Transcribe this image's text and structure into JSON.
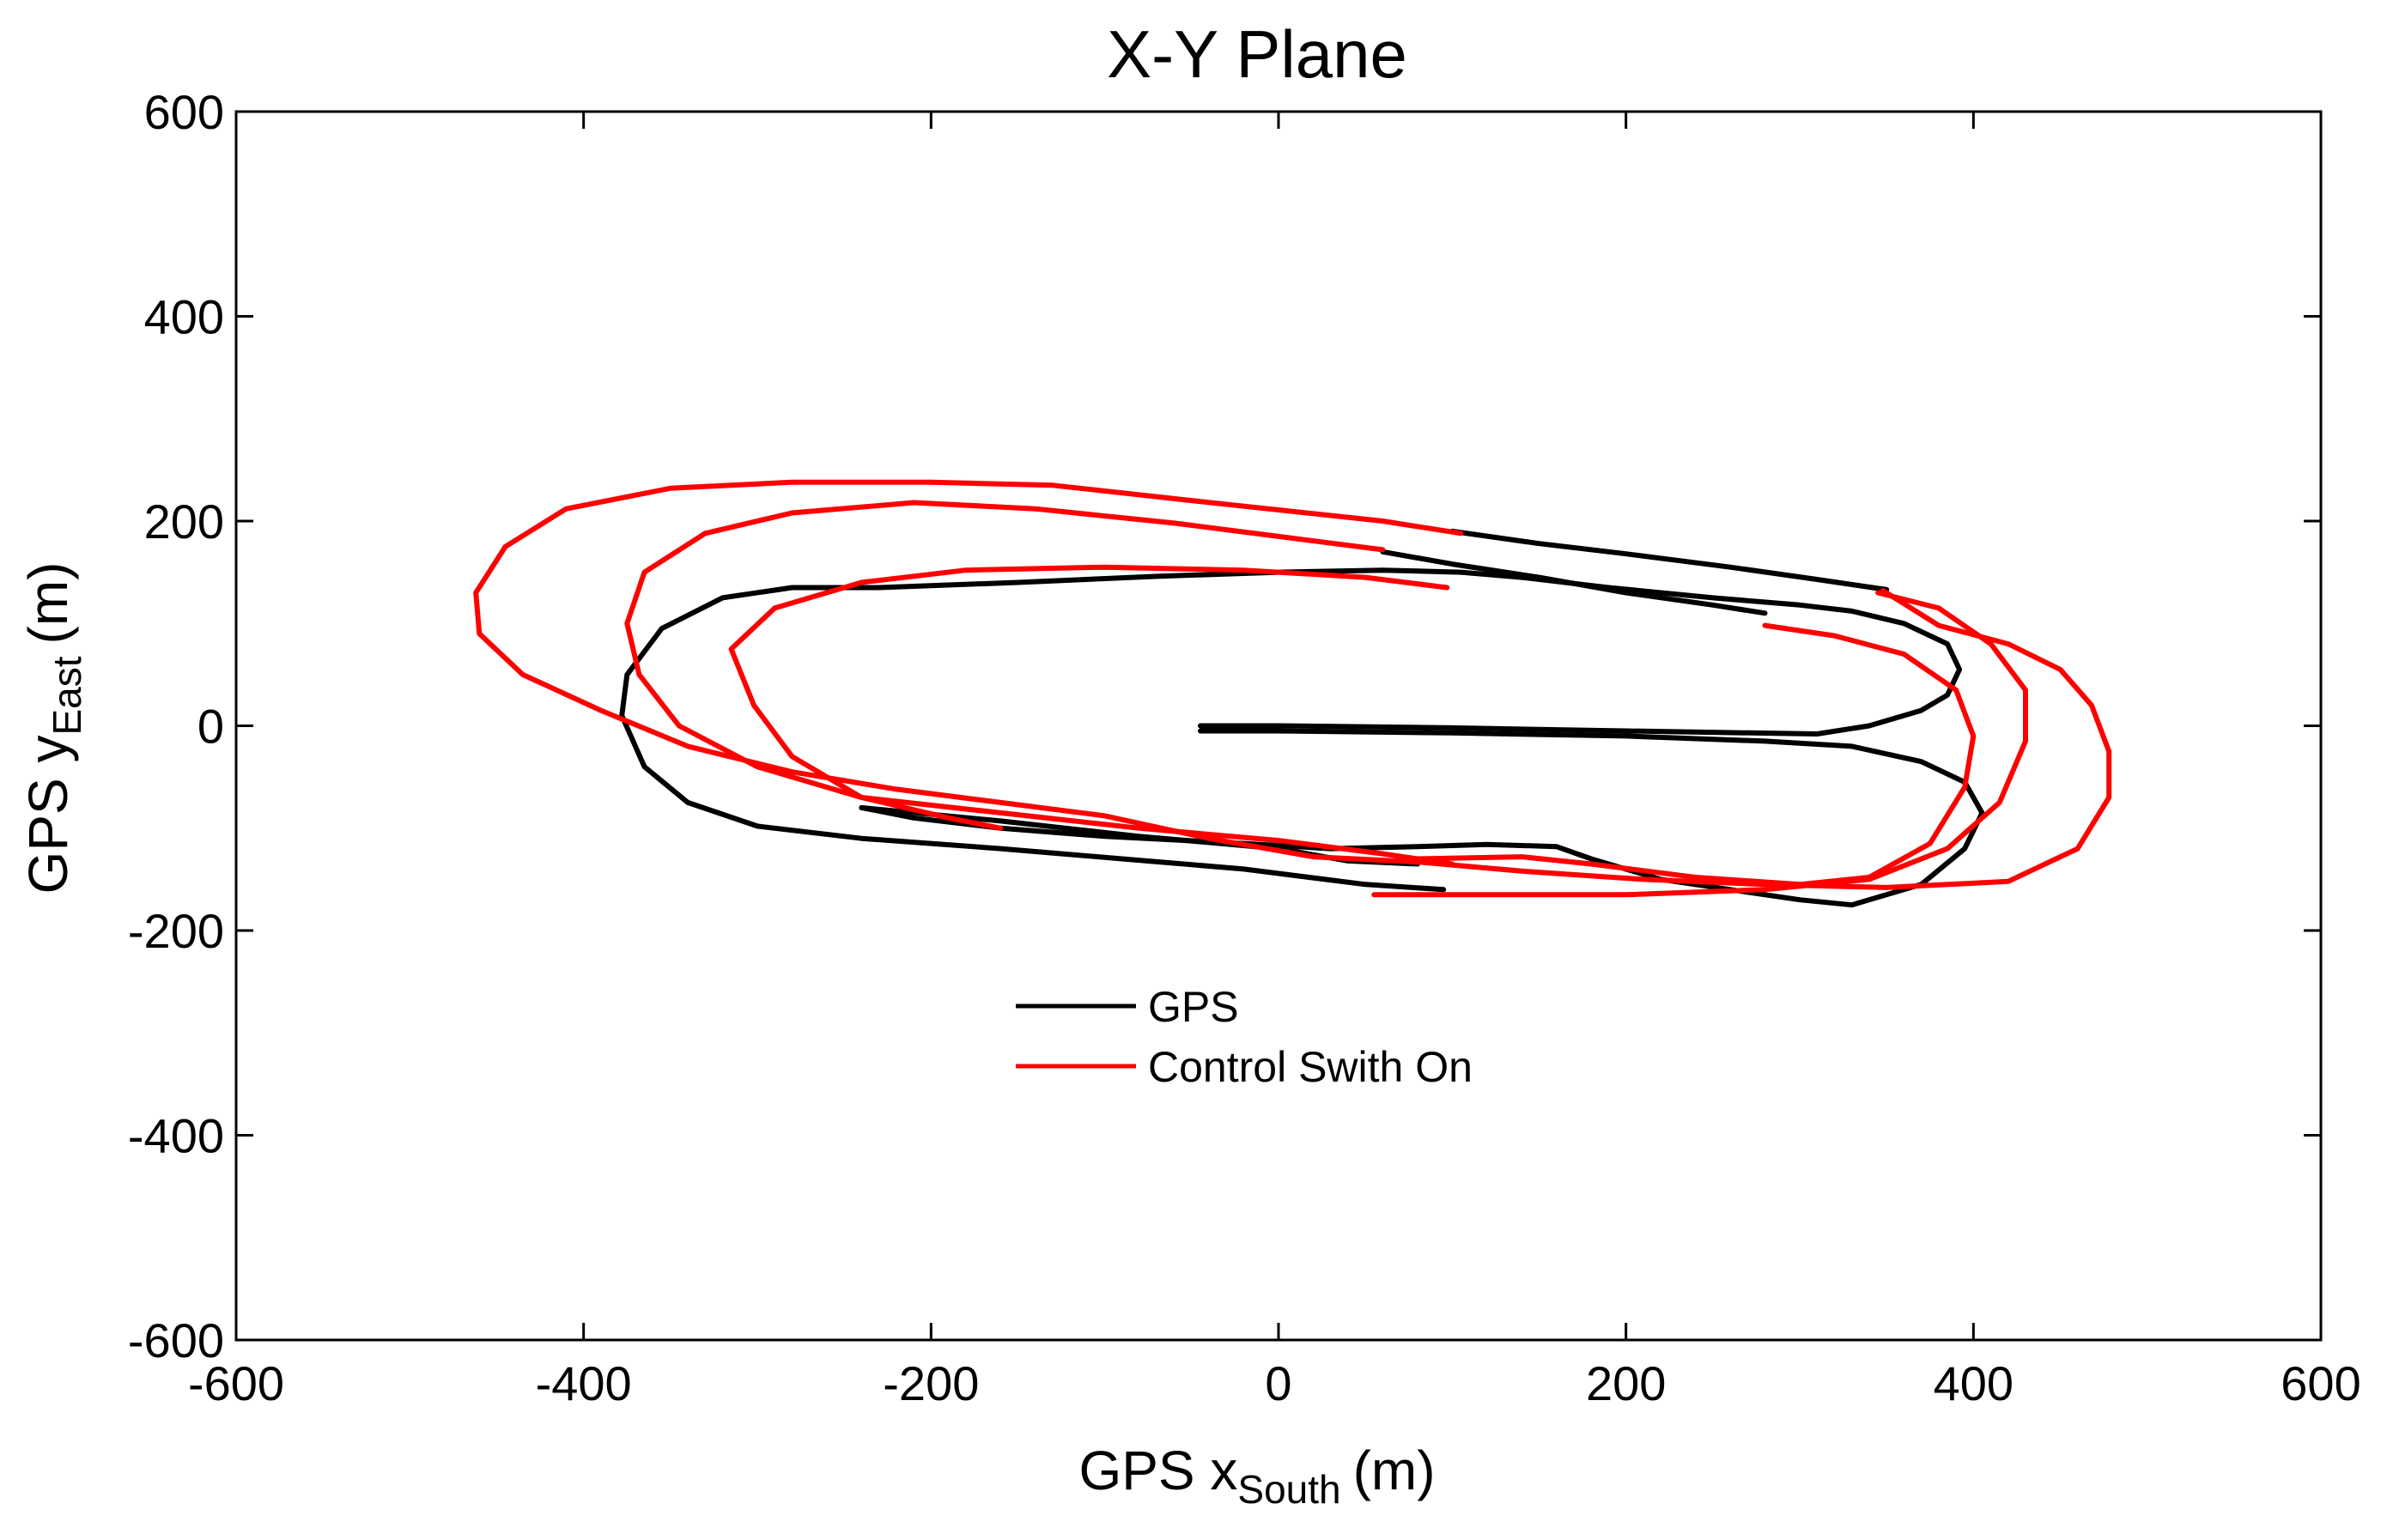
{
  "chart_data": {
    "type": "line",
    "title": "X-Y Plane",
    "xlabel": {
      "main": "GPS x",
      "sub": "South",
      "unit": "(m)"
    },
    "ylabel": {
      "main": "GPS y",
      "sub": "East",
      "unit": "(m)"
    },
    "xlim": [
      -600,
      600
    ],
    "ylim": [
      -600,
      600
    ],
    "xticks": [
      -600,
      -400,
      -200,
      0,
      200,
      400,
      600
    ],
    "yticks": [
      -600,
      -400,
      -200,
      0,
      200,
      400,
      600
    ],
    "grid": false,
    "legend": {
      "placement": "lower-center"
    },
    "colors": {
      "gps": "#000000",
      "control": "#ff0000"
    },
    "series": [
      {
        "name": "GPS",
        "segments": [
          [
            [
              -45,
              0
            ],
            [
              0,
              0
            ],
            [
              100,
              -2
            ],
            [
              200,
              -5
            ],
            [
              310,
              -8
            ],
            [
              340,
              0
            ],
            [
              370,
              15
            ],
            [
              385,
              30
            ],
            [
              392,
              55
            ],
            [
              385,
              80
            ],
            [
              360,
              100
            ],
            [
              330,
              112
            ],
            [
              300,
              118
            ],
            [
              250,
              125
            ],
            [
              190,
              135
            ],
            [
              140,
              145
            ],
            [
              105,
              150
            ],
            [
              60,
              152
            ],
            [
              0,
              150
            ],
            [
              -70,
              146
            ],
            [
              -150,
              140
            ],
            [
              -230,
              135
            ],
            [
              -280,
              135
            ],
            [
              -320,
              125
            ],
            [
              -355,
              95
            ],
            [
              -375,
              50
            ],
            [
              -378,
              10
            ],
            [
              -365,
              -40
            ],
            [
              -340,
              -75
            ],
            [
              -300,
              -98
            ],
            [
              -240,
              -110
            ],
            [
              -160,
              -120
            ],
            [
              -90,
              -130
            ],
            [
              -20,
              -140
            ],
            [
              50,
              -155
            ],
            [
              95,
              -160
            ]
          ],
          [
            [
              -45,
              -5
            ],
            [
              0,
              -5
            ],
            [
              100,
              -7
            ],
            [
              200,
              -10
            ],
            [
              280,
              -15
            ],
            [
              330,
              -20
            ],
            [
              370,
              -35
            ],
            [
              395,
              -55
            ],
            [
              405,
              -85
            ],
            [
              395,
              -120
            ],
            [
              370,
              -155
            ],
            [
              330,
              -175
            ],
            [
              300,
              -170
            ],
            [
              260,
              -160
            ],
            [
              220,
              -150
            ],
            [
              180,
              -130
            ],
            [
              160,
              -118
            ],
            [
              120,
              -116
            ],
            [
              80,
              -118
            ],
            [
              30,
              -120
            ],
            [
              -20,
              -115
            ],
            [
              -100,
              -108
            ],
            [
              -160,
              -100
            ],
            [
              -210,
              -90
            ],
            [
              -240,
              -80
            ]
          ],
          [
            [
              -240,
              -80
            ],
            [
              -160,
              -93
            ],
            [
              -80,
              -108
            ],
            [
              0,
              -120
            ],
            [
              40,
              -132
            ],
            [
              80,
              -135
            ]
          ],
          [
            [
              60,
              170
            ],
            [
              100,
              158
            ],
            [
              150,
              145
            ],
            [
              200,
              130
            ],
            [
              250,
              118
            ],
            [
              280,
              110
            ]
          ],
          [
            [
              100,
              190
            ],
            [
              150,
              178
            ],
            [
              200,
              168
            ],
            [
              260,
              155
            ],
            [
              310,
              143
            ],
            [
              350,
              133
            ]
          ]
        ]
      },
      {
        "name": "Control Swith On",
        "segments": [
          [
            [
              105,
              188
            ],
            [
              60,
              200
            ],
            [
              -50,
              220
            ],
            [
              -130,
              235
            ],
            [
              -200,
              238
            ],
            [
              -280,
              238
            ],
            [
              -350,
              232
            ],
            [
              -410,
              212
            ],
            [
              -445,
              175
            ],
            [
              -462,
              130
            ],
            [
              -460,
              90
            ],
            [
              -435,
              50
            ],
            [
              -390,
              15
            ],
            [
              -340,
              -20
            ],
            [
              -280,
              -45
            ],
            [
              -220,
              -62
            ],
            [
              -160,
              -75
            ],
            [
              -100,
              -88
            ],
            [
              -40,
              -110
            ],
            [
              20,
              -128
            ],
            [
              80,
              -133
            ],
            [
              140,
              -142
            ],
            [
              210,
              -150
            ],
            [
              280,
              -155
            ],
            [
              350,
              -158
            ],
            [
              420,
              -152
            ],
            [
              460,
              -120
            ],
            [
              478,
              -70
            ],
            [
              478,
              -25
            ],
            [
              468,
              20
            ],
            [
              450,
              55
            ],
            [
              420,
              80
            ],
            [
              380,
              98
            ],
            [
              348,
              132
            ]
          ],
          [
            [
              60,
              172
            ],
            [
              0,
              185
            ],
            [
              -60,
              198
            ],
            [
              -140,
              212
            ],
            [
              -210,
              218
            ],
            [
              -280,
              208
            ],
            [
              -330,
              188
            ],
            [
              -365,
              150
            ],
            [
              -375,
              100
            ],
            [
              -368,
              50
            ],
            [
              -345,
              0
            ],
            [
              -300,
              -40
            ],
            [
              -240,
              -70
            ],
            [
              -160,
              -85
            ],
            [
              -80,
              -100
            ],
            [
              0,
              -112
            ],
            [
              60,
              -125
            ],
            [
              100,
              -135
            ]
          ],
          [
            [
              97,
              135
            ],
            [
              50,
              145
            ],
            [
              -20,
              152
            ],
            [
              -100,
              155
            ],
            [
              -180,
              152
            ],
            [
              -240,
              140
            ],
            [
              -290,
              115
            ],
            [
              -315,
              75
            ],
            [
              -302,
              20
            ],
            [
              -280,
              -30
            ],
            [
              -240,
              -70
            ],
            [
              -190,
              -90
            ],
            [
              -160,
              -100
            ]
          ],
          [
            [
              280,
              98
            ],
            [
              320,
              88
            ],
            [
              360,
              70
            ],
            [
              390,
              35
            ],
            [
              400,
              -10
            ],
            [
              395,
              -60
            ],
            [
              375,
              -115
            ],
            [
              340,
              -148
            ],
            [
              300,
              -155
            ],
            [
              240,
              -148
            ],
            [
              180,
              -135
            ],
            [
              140,
              -128
            ],
            [
              80,
              -130
            ]
          ],
          [
            [
              345,
              130
            ],
            [
              380,
              115
            ],
            [
              410,
              80
            ],
            [
              430,
              35
            ],
            [
              430,
              -15
            ],
            [
              415,
              -75
            ],
            [
              385,
              -120
            ],
            [
              340,
              -150
            ],
            [
              280,
              -160
            ],
            [
              200,
              -165
            ],
            [
              120,
              -165
            ],
            [
              60,
              -165
            ],
            [
              55,
              -165
            ]
          ]
        ]
      }
    ]
  }
}
